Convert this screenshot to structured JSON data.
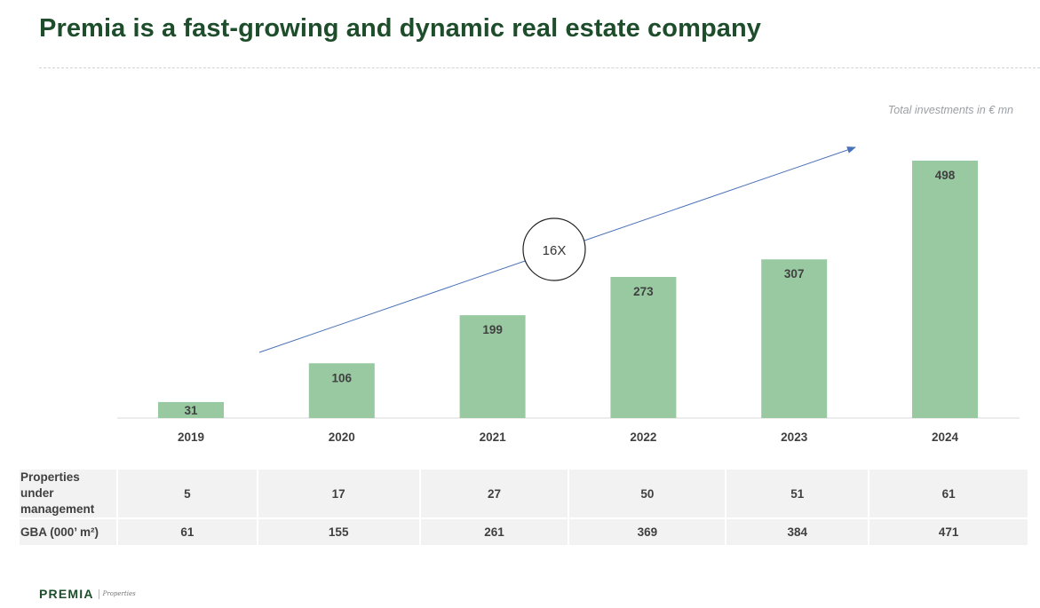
{
  "title": "Premia is a fast-growing and dynamic real estate company",
  "unit_note": "Total investments in € mn",
  "callout": "16X",
  "chart_data": {
    "type": "bar",
    "title": "Premia is a fast-growing and dynamic real estate company",
    "subtitle": "Total investments in € mn",
    "categories": [
      "2019",
      "2020",
      "2021",
      "2022",
      "2023",
      "2024"
    ],
    "values": [
      31,
      106,
      199,
      273,
      307,
      498
    ],
    "annotation": "16X",
    "colors": {
      "bar": "#98c9a1",
      "arrow": "#4a72b8"
    }
  },
  "table": {
    "rows": [
      {
        "label": "Properties under management",
        "values": [
          "5",
          "17",
          "27",
          "50",
          "51",
          "61"
        ]
      },
      {
        "label": "GBA (000’ m²)",
        "values": [
          "61",
          "155",
          "261",
          "369",
          "384",
          "471"
        ]
      }
    ]
  },
  "footer": {
    "logo": "PREMIA",
    "logo_sub": "Properties"
  },
  "colors": {
    "title": "#1e4d2b",
    "table_bg": "#f2f2f2"
  }
}
